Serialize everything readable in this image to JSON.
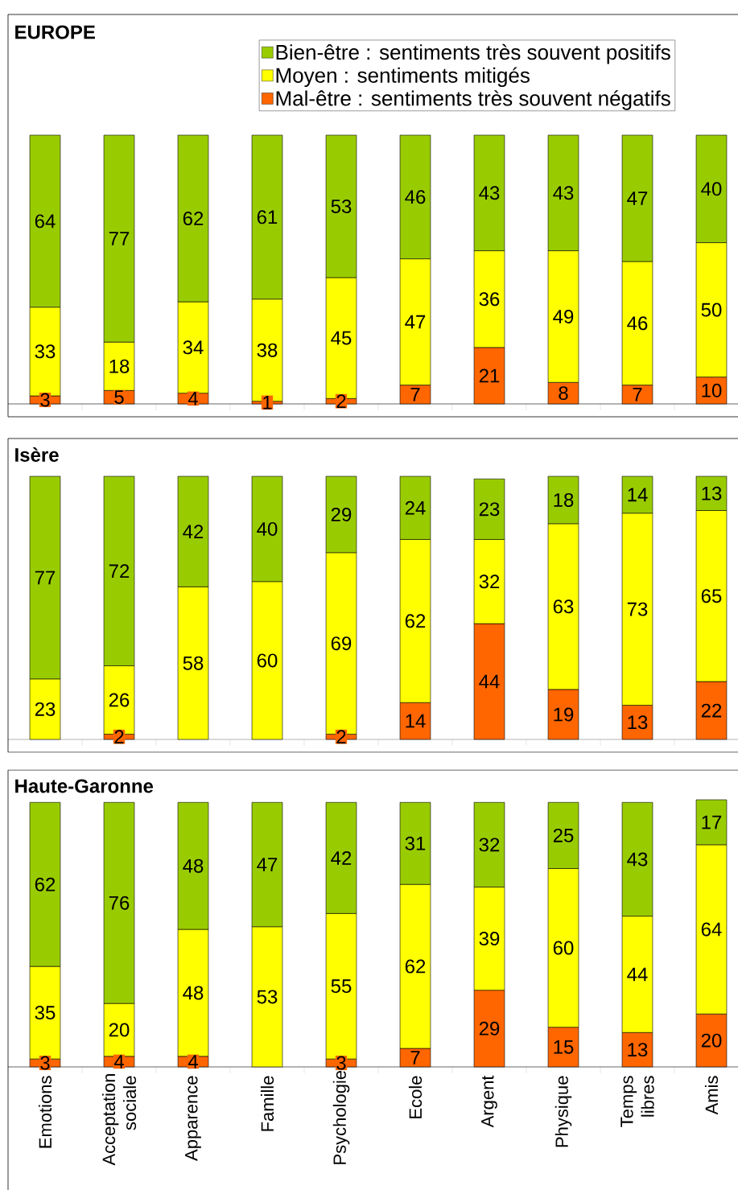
{
  "chart_data": [
    {
      "type": "bar",
      "title": "EUROPE",
      "stacked": true,
      "data_labels": true,
      "legend": "top right",
      "categories": [
        null,
        null,
        null,
        null,
        null,
        null,
        null,
        null,
        null,
        null
      ],
      "series": [
        {
          "name": "Mal-être : sentiments très souvent négatifs",
          "color": "#ff6600",
          "values": [
            3,
            5,
            4,
            1,
            2,
            7,
            21,
            8,
            7,
            10
          ]
        },
        {
          "name": "Moyen : sentiments mitigés",
          "color": "#ffff00",
          "values": [
            33,
            18,
            34,
            38,
            45,
            47,
            36,
            49,
            46,
            50
          ]
        },
        {
          "name": "Bien-être : sentiments très souvent positifs",
          "color": "#99cc00",
          "values": [
            64,
            77,
            62,
            61,
            53,
            46,
            43,
            43,
            47,
            40
          ]
        }
      ]
    },
    {
      "type": "bar",
      "title": "Isère",
      "stacked": true,
      "data_labels": true,
      "categories": [
        null,
        null,
        null,
        null,
        null,
        null,
        null,
        null,
        null,
        null
      ],
      "series": [
        {
          "color": "#ff6600",
          "values": [
            null,
            2,
            null,
            null,
            2,
            14,
            44,
            19,
            13,
            22
          ]
        },
        {
          "color": "#ffff00",
          "values": [
            23,
            26,
            58,
            60,
            69,
            62,
            32,
            63,
            73,
            65
          ]
        },
        {
          "color": "#99cc00",
          "values": [
            77,
            72,
            42,
            40,
            29,
            24,
            23,
            18,
            14,
            13
          ]
        }
      ]
    },
    {
      "type": "bar",
      "title": "Haute-Garonne",
      "stacked": true,
      "data_labels": true,
      "tick_labels": "x",
      "categories": [
        "Emotions",
        "Acceptation sociale",
        "Apparence",
        "Famille",
        "Psychologie",
        "Ecole",
        "Argent",
        "Physique",
        "Temps libres",
        "Amis"
      ],
      "series": [
        {
          "color": "#ff6600",
          "values": [
            3,
            4,
            4,
            null,
            3,
            7,
            29,
            15,
            13,
            20
          ]
        },
        {
          "color": "#ffff00",
          "values": [
            35,
            20,
            48,
            53,
            55,
            62,
            39,
            60,
            44,
            64
          ]
        },
        {
          "color": "#99cc00",
          "values": [
            62,
            76,
            48,
            47,
            42,
            31,
            32,
            25,
            43,
            17
          ]
        }
      ]
    }
  ]
}
